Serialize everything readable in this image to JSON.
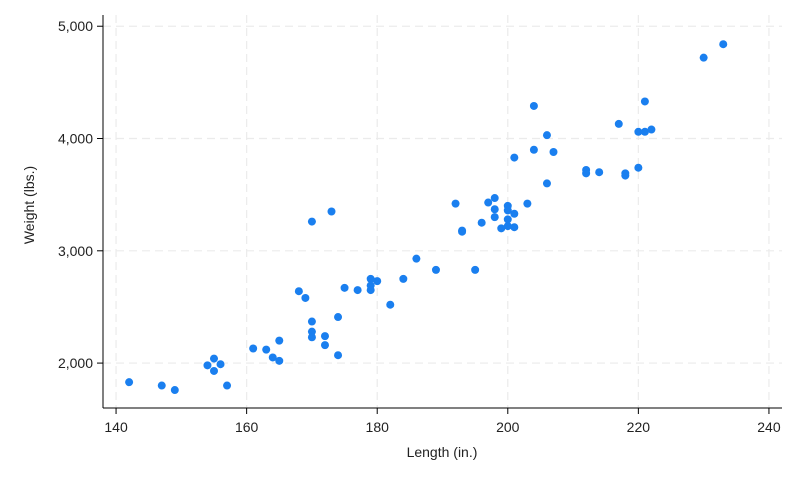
{
  "chart_data": {
    "type": "scatter",
    "title": "",
    "xlabel": "Length (in.)",
    "ylabel": "Weight (lbs.)",
    "xlim": [
      138,
      242
    ],
    "ylim": [
      1600,
      5100
    ],
    "x_ticks": [
      140,
      160,
      180,
      200,
      220,
      240
    ],
    "y_ticks": [
      2000,
      3000,
      4000,
      5000
    ],
    "x_tick_labels": [
      "140",
      "160",
      "180",
      "200",
      "220",
      "240"
    ],
    "y_tick_labels": [
      "2,000",
      "3,000",
      "4,000",
      "5,000"
    ],
    "grid": true,
    "marker_color": "#1a7fef",
    "grid_color": "#ebebeb",
    "series": [
      {
        "points": [
          [
            142,
            1830
          ],
          [
            147,
            1800
          ],
          [
            149,
            1760
          ],
          [
            154,
            1980
          ],
          [
            155,
            2040
          ],
          [
            155,
            1930
          ],
          [
            156,
            1990
          ],
          [
            157,
            1800
          ],
          [
            161,
            2130
          ],
          [
            163,
            2120
          ],
          [
            164,
            2050
          ],
          [
            165,
            2200
          ],
          [
            165,
            2020
          ],
          [
            168,
            2640
          ],
          [
            169,
            2580
          ],
          [
            170,
            2370
          ],
          [
            170,
            2280
          ],
          [
            170,
            2230
          ],
          [
            172,
            2240
          ],
          [
            172,
            2160
          ],
          [
            174,
            2410
          ],
          [
            174,
            2070
          ],
          [
            170,
            3260
          ],
          [
            173,
            3350
          ],
          [
            175,
            2670
          ],
          [
            177,
            2650
          ],
          [
            179,
            2750
          ],
          [
            179,
            2690
          ],
          [
            179,
            2650
          ],
          [
            180,
            2730
          ],
          [
            182,
            2520
          ],
          [
            184,
            2750
          ],
          [
            186,
            2930
          ],
          [
            189,
            2830
          ],
          [
            192,
            3420
          ],
          [
            193,
            3180
          ],
          [
            193,
            3170
          ],
          [
            195,
            2830
          ],
          [
            196,
            3250
          ],
          [
            197,
            3430
          ],
          [
            198,
            3470
          ],
          [
            198,
            3370
          ],
          [
            198,
            3300
          ],
          [
            199,
            3200
          ],
          [
            200,
            3400
          ],
          [
            200,
            3360
          ],
          [
            200,
            3280
          ],
          [
            200,
            3220
          ],
          [
            201,
            3330
          ],
          [
            201,
            3210
          ],
          [
            203,
            3420
          ],
          [
            201,
            3830
          ],
          [
            204,
            3900
          ],
          [
            204,
            4290
          ],
          [
            206,
            4030
          ],
          [
            206,
            3600
          ],
          [
            207,
            3880
          ],
          [
            212,
            3720
          ],
          [
            212,
            3690
          ],
          [
            214,
            3700
          ],
          [
            217,
            4130
          ],
          [
            218,
            3690
          ],
          [
            218,
            3670
          ],
          [
            220,
            4060
          ],
          [
            220,
            3740
          ],
          [
            221,
            4330
          ],
          [
            221,
            4060
          ],
          [
            222,
            4080
          ],
          [
            230,
            4720
          ],
          [
            233,
            4840
          ]
        ]
      }
    ]
  }
}
